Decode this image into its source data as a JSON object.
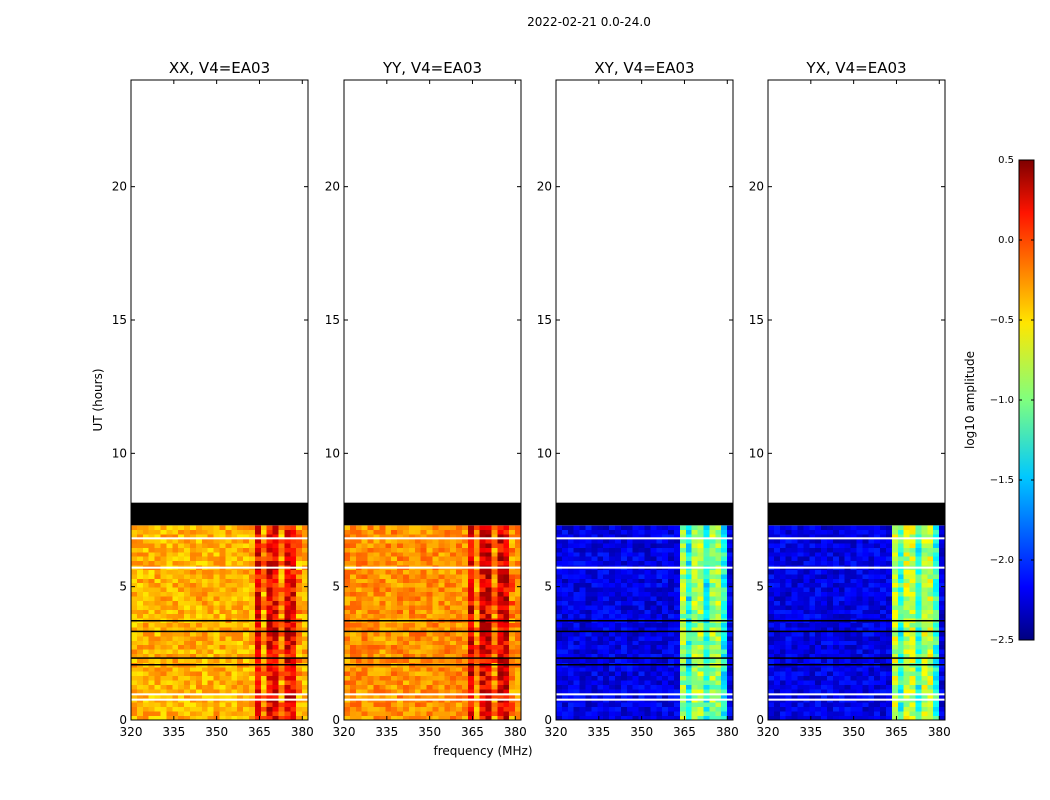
{
  "chart_data": {
    "type": "heatmap",
    "suptitle": "2022-02-21 0.0-24.0",
    "xlabel": "frequency (MHz)",
    "ylabel": "UT (hours)",
    "xlim": [
      320,
      382
    ],
    "ylim": [
      0,
      24
    ],
    "xticks": [
      320,
      335,
      350,
      365,
      380
    ],
    "yticks": [
      0,
      5,
      10,
      15,
      20
    ],
    "colorbar": {
      "label": "log10 amplitude",
      "colormap": "jet",
      "range": [
        -2.5,
        0.5
      ],
      "ticks": [
        "0.5",
        "0.0",
        "−0.5",
        "−1.0",
        "−1.5",
        "−2.0",
        "−2.5"
      ]
    },
    "data_extent_hours": [
      0,
      7.3
    ],
    "blank_rows_hours": [
      7.3,
      8.15
    ],
    "bright_band_mhz": [
      363,
      379
    ],
    "panels": [
      {
        "title": "XX, V4=EA03",
        "level": -0.4,
        "band_level": 0.15
      },
      {
        "title": "YY, V4=EA03",
        "level": -0.3,
        "band_level": 0.2
      },
      {
        "title": "XY, V4=EA03",
        "level": -2.2,
        "band_level": -0.9
      },
      {
        "title": "YX, V4=EA03",
        "level": -2.2,
        "band_level": -0.8
      }
    ]
  }
}
